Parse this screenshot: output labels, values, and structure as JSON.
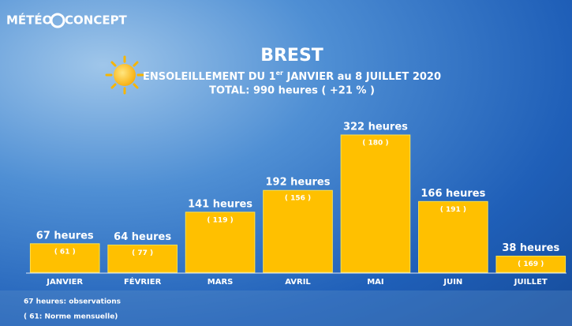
{
  "chart_data": {
    "type": "bar",
    "logo": {
      "left": "MÉTÉO",
      "right": "CONCEPT"
    },
    "title": "BREST",
    "subtitle": {
      "before": "ENSOLEILLEMENT DU 1",
      "sup": "er",
      "after": " JANVIER au 8 JUILLET 2020"
    },
    "total": "TOTAL: 990 heures ( +21 % )",
    "categories": [
      "JANVIER",
      "FÉVRIER",
      "MARS",
      "AVRIL",
      "MAI",
      "JUIN",
      "JUILLET"
    ],
    "values": [
      67,
      64,
      141,
      192,
      322,
      166,
      38
    ],
    "value_labels": [
      "67 heures",
      "64 heures",
      "141 heures",
      "192 heures",
      "322 heures",
      "166 heures",
      "38 heures"
    ],
    "norms": {
      "values": [
        61,
        77,
        119,
        156,
        180,
        191,
        169
      ],
      "value_labels": [
        "( 61 )",
        "( 77 )",
        "( 119 )",
        "( 156 )",
        "( 180 )",
        "( 191 )",
        "( 169 )"
      ]
    },
    "color": "#ffc000",
    "footnotes": [
      "67 heures: observations",
      "( 61: Norme mensuelle)"
    ]
  }
}
